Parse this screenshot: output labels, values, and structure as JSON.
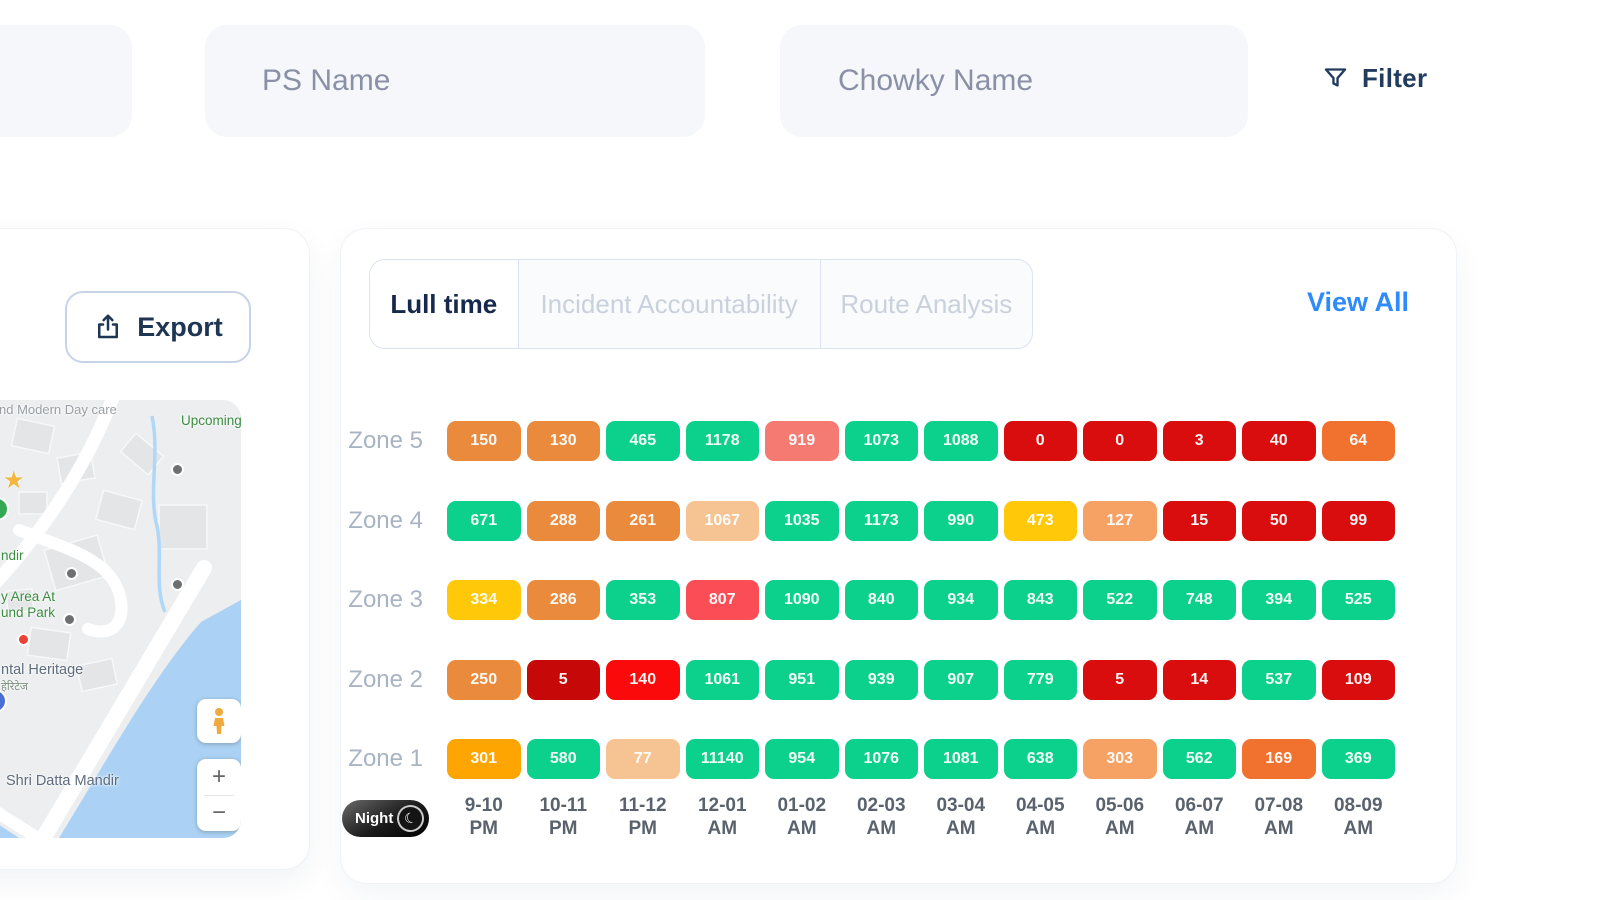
{
  "header": {
    "ps_name_placeholder": "PS Name",
    "chowky_name_placeholder": "Chowky Name",
    "filter_label": "Filter"
  },
  "map_panel": {
    "export_label": "Export",
    "map_labels": {
      "day_care": "nd Modern Day care",
      "upcoming": "Upcoming",
      "mandir_partial": "ndir",
      "play_area_line1": "y Area At",
      "play_area_line2": "und Park",
      "heritage": "ntal Heritage",
      "heritage_sub": "हेरिटेज",
      "shri_datta_mandir": "Shri Datta Mandir",
      "zoom_in": "+",
      "zoom_out": "−"
    }
  },
  "analysis_panel": {
    "tabs": [
      {
        "label": "Lull time",
        "active": true
      },
      {
        "label": "Incident Accountability",
        "active": false
      },
      {
        "label": "Route Analysis",
        "active": false
      }
    ],
    "view_all_label": "View All",
    "night_toggle_label": "Night"
  },
  "chart_data": {
    "type": "heatmap",
    "title": "Lull time",
    "rows": [
      "Zone 5",
      "Zone 4",
      "Zone 3",
      "Zone 2",
      "Zone 1"
    ],
    "columns": [
      "9-10 PM",
      "10-11 PM",
      "11-12 PM",
      "12-01 AM",
      "01-02 AM",
      "02-03 AM",
      "03-04 AM",
      "04-05 AM",
      "05-06 AM",
      "06-07 AM",
      "07-08 AM",
      "08-09 AM"
    ],
    "palette": {
      "green": "#0CD18C",
      "orange": "#E98A3C",
      "deep_orange": "#F1712E",
      "amber": "#FFA502",
      "yellow": "#FFC90A",
      "tan": "#F6C392",
      "light_orange": "#F6A264",
      "salmon": "#F57B72",
      "red_pink": "#FB4D55",
      "bright_red": "#FA0A0A",
      "red": "#D90D0D",
      "dark_red": "#C60808"
    },
    "series": [
      {
        "zone": "Zone 5",
        "values": [
          150,
          130,
          465,
          1178,
          919,
          1073,
          1088,
          0,
          0,
          3,
          40,
          64
        ],
        "colors": [
          "orange",
          "orange",
          "green",
          "green",
          "salmon",
          "green",
          "green",
          "red",
          "red",
          "red",
          "red",
          "deep_orange"
        ]
      },
      {
        "zone": "Zone 4",
        "values": [
          671,
          288,
          261,
          1067,
          1035,
          1173,
          990,
          473,
          127,
          15,
          50,
          99
        ],
        "colors": [
          "green",
          "orange",
          "orange",
          "tan",
          "green",
          "green",
          "green",
          "yellow",
          "light_orange",
          "red",
          "red",
          "red"
        ]
      },
      {
        "zone": "Zone 3",
        "values": [
          334,
          286,
          353,
          807,
          1090,
          840,
          934,
          843,
          522,
          748,
          394,
          525
        ],
        "colors": [
          "yellow",
          "orange",
          "green",
          "red_pink",
          "green",
          "green",
          "green",
          "green",
          "green",
          "green",
          "green",
          "green"
        ]
      },
      {
        "zone": "Zone 2",
        "values": [
          250,
          5,
          140,
          1061,
          951,
          939,
          907,
          779,
          5,
          14,
          537,
          109
        ],
        "colors": [
          "orange",
          "dark_red",
          "bright_red",
          "green",
          "green",
          "green",
          "green",
          "green",
          "red",
          "red",
          "green",
          "red"
        ]
      },
      {
        "zone": "Zone 1",
        "values": [
          301,
          580,
          77,
          11140,
          954,
          1076,
          1081,
          638,
          303,
          562,
          169,
          369
        ],
        "colors": [
          "amber",
          "green",
          "tan",
          "green",
          "green",
          "green",
          "green",
          "green",
          "light_orange",
          "green",
          "deep_orange",
          "green"
        ]
      }
    ]
  }
}
